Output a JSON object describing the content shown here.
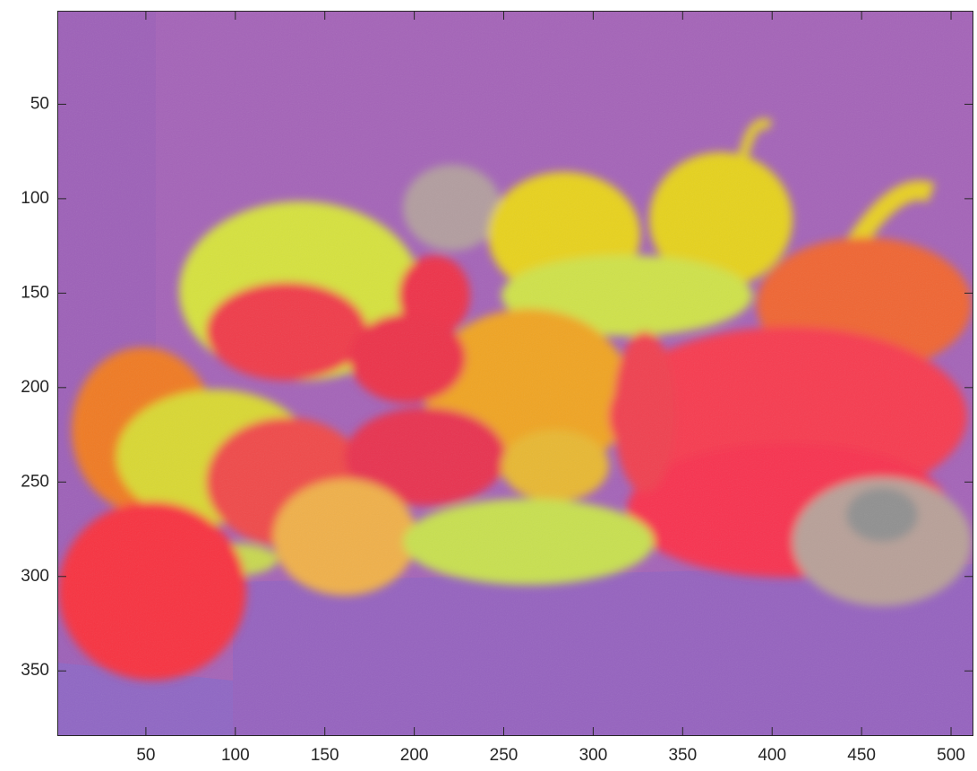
{
  "chart_data": {
    "type": "image",
    "xlim": [
      0.5,
      512.5
    ],
    "ylim": [
      0.5,
      384.5
    ],
    "ydir": "reverse",
    "xticks": [
      50,
      100,
      150,
      200,
      250,
      300,
      350,
      400,
      450,
      500
    ],
    "yticks": [
      50,
      100,
      150,
      200,
      250,
      300,
      350
    ]
  }
}
